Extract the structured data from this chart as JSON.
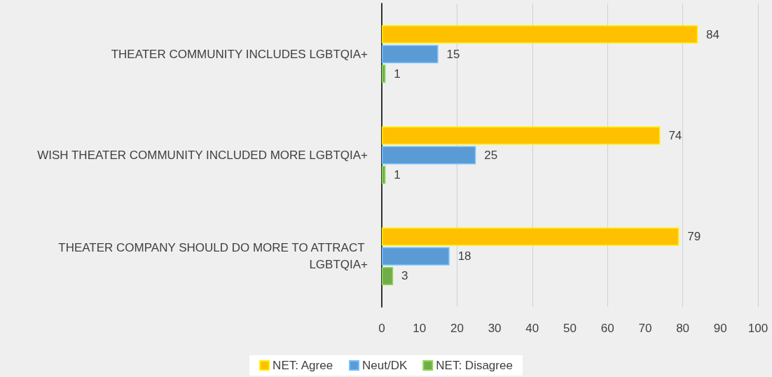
{
  "chart_data": {
    "type": "bar",
    "orientation": "horizontal",
    "categories": [
      "THEATER COMMUNITY INCLUDES LGBTQIA+",
      "WISH THEATER COMMUNITY INCLUDED MORE LGBTQIA+",
      "THEATER COMPANY SHOULD DO MORE TO ATTRACT LGBTQIA+"
    ],
    "series": [
      {
        "name": "NET: Agree",
        "color": "#ffc000",
        "values": [
          84,
          74,
          79
        ]
      },
      {
        "name": "Neut/DK",
        "color": "#5b9bd5",
        "values": [
          15,
          25,
          18
        ]
      },
      {
        "name": "NET: Disagree",
        "color": "#70ad47",
        "values": [
          1,
          1,
          3
        ]
      }
    ],
    "xlim": [
      0,
      100
    ],
    "xticks": [
      0,
      10,
      20,
      30,
      40,
      50,
      60,
      70,
      80,
      90,
      100
    ],
    "grid": "x",
    "legend": "bottom",
    "data_labels": true
  }
}
